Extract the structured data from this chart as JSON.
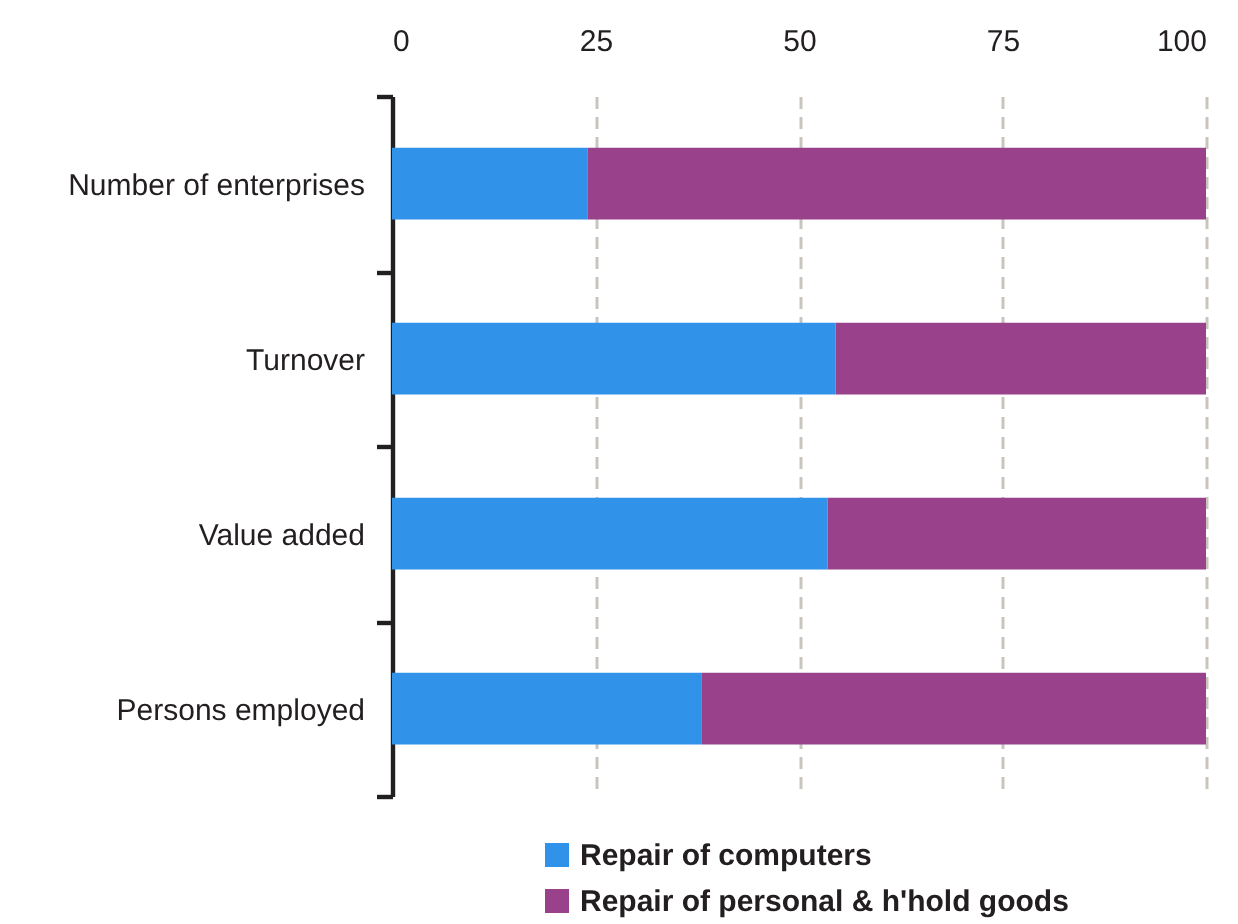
{
  "chart_data": {
    "type": "bar",
    "orientation": "horizontal",
    "stacked": true,
    "categories": [
      "Number of enterprises",
      "Turnover",
      "Value added",
      "Persons employed"
    ],
    "series": [
      {
        "name": "Repair of computers",
        "color": "#3192ea",
        "values": [
          24,
          54.5,
          53.5,
          38
        ]
      },
      {
        "name": "Repair of personal & h'hold goods",
        "color": "#99428b",
        "values": [
          76,
          45.5,
          46.5,
          62
        ]
      }
    ],
    "xlim": [
      0,
      100
    ],
    "xticks": [
      0,
      25,
      50,
      75,
      100
    ],
    "grid": "x",
    "legend": "bottom"
  }
}
